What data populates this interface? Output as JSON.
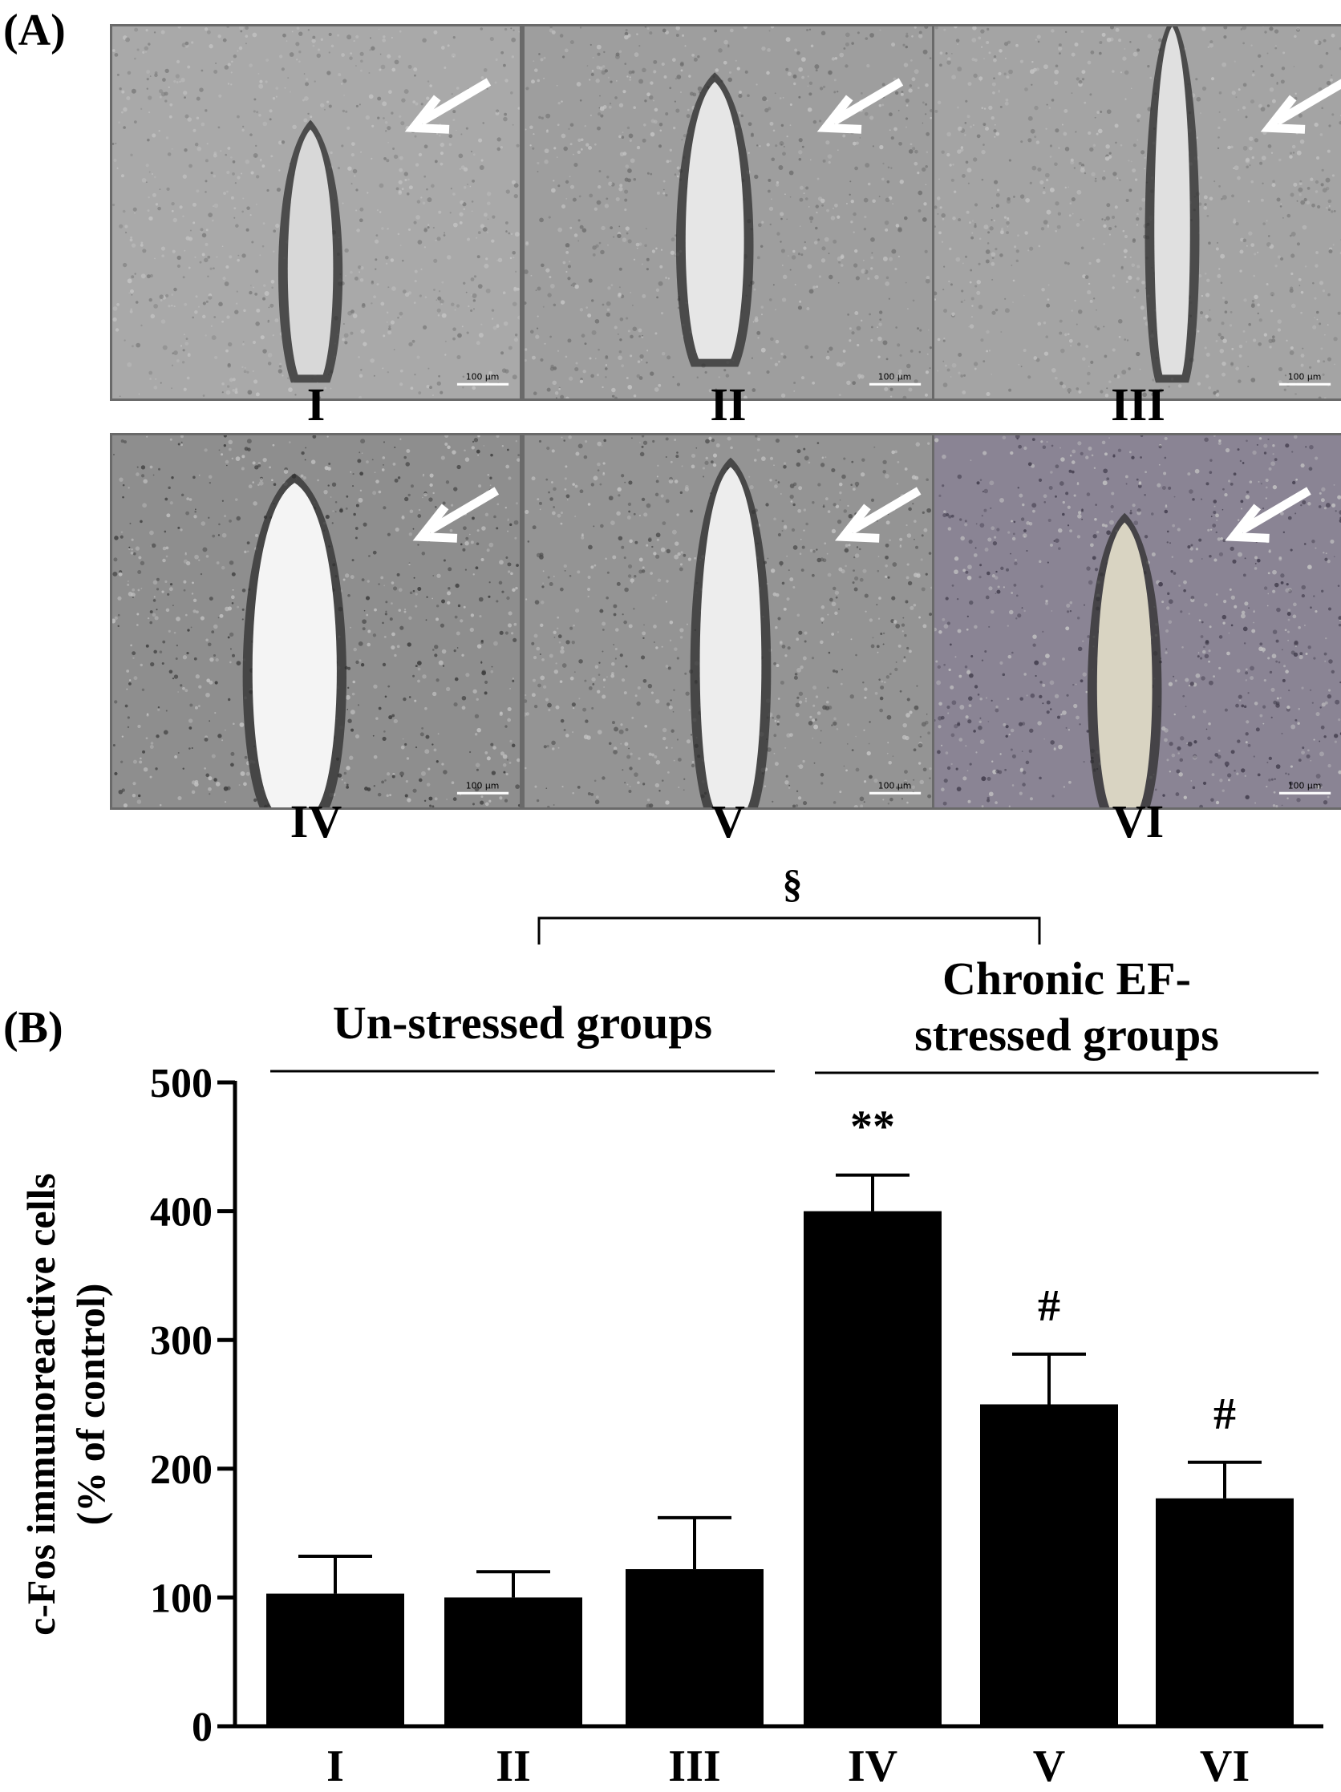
{
  "panel_a": {
    "label": "(A)",
    "images": [
      {
        "label": "I",
        "scale_bar": "100 μm"
      },
      {
        "label": "II",
        "scale_bar": "100 μm"
      },
      {
        "label": "III",
        "scale_bar": "100 μm"
      },
      {
        "label": "IV",
        "scale_bar": "100 μm"
      },
      {
        "label": "V",
        "scale_bar": "100 μm"
      },
      {
        "label": "VI",
        "scale_bar": "100 μm"
      }
    ]
  },
  "panel_b": {
    "label": "(B)"
  },
  "chart_data": {
    "type": "bar",
    "categories": [
      "I",
      "II",
      "III",
      "IV",
      "V",
      "VI"
    ],
    "values": [
      103,
      100,
      122,
      400,
      250,
      177
    ],
    "errors": [
      29,
      20,
      40,
      28,
      39,
      28
    ],
    "annotations": [
      "",
      "",
      "",
      "**",
      "#",
      "#"
    ],
    "ylabel_line1": "c-Fos immunoreactive cells",
    "ylabel_line2": "(% of control)",
    "ylim": [
      0,
      500
    ],
    "yticks": [
      0,
      100,
      200,
      300,
      400,
      500
    ],
    "group_labels": [
      {
        "lines": [
          "Un-stressed groups"
        ],
        "categories": [
          "I",
          "II",
          "III"
        ]
      },
      {
        "lines": [
          "Chronic EF-",
          "stressed groups"
        ],
        "categories": [
          "IV",
          "V",
          "VI"
        ]
      }
    ],
    "bracket_symbol": "§",
    "bar_color": "#000000",
    "grid": false
  }
}
